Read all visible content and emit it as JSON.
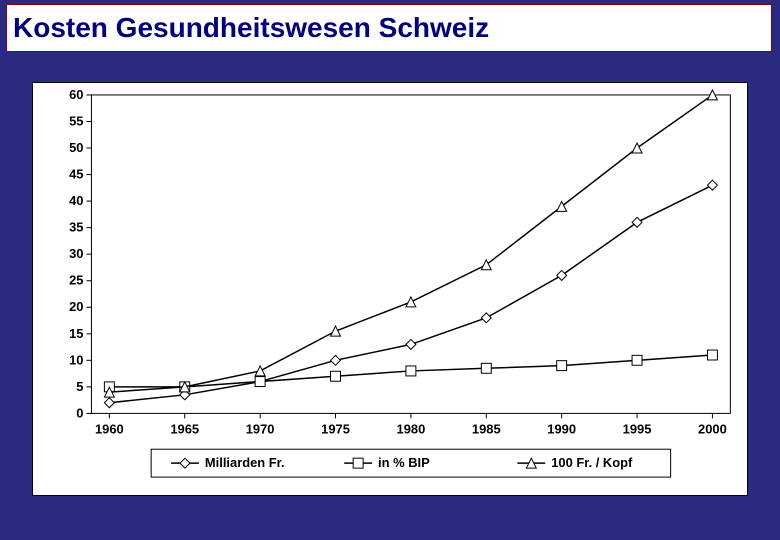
{
  "title": "Kosten Gesundheitswesen Schweiz",
  "chart": {
    "type": "line",
    "background_color": "#ffffff",
    "axis_color": "#000000",
    "tick_color": "#000000",
    "text_color": "#000000",
    "line_color": "#000000",
    "line_width": 1.5,
    "font_family": "Arial",
    "tick_fontsize": 13,
    "x": {
      "ticks": [
        1960,
        1965,
        1970,
        1975,
        1980,
        1985,
        1990,
        1995,
        2000
      ],
      "lim": [
        1960,
        2000
      ]
    },
    "y": {
      "ticks": [
        0,
        5,
        10,
        15,
        20,
        25,
        30,
        35,
        40,
        45,
        50,
        55,
        60
      ],
      "lim": [
        0,
        60
      ]
    },
    "series": [
      {
        "name": "Milliarden Fr.",
        "marker": "diamond",
        "values": {
          "1960": 2,
          "1965": 3.5,
          "1970": 6,
          "1975": 10,
          "1980": 13,
          "1985": 18,
          "1990": 26,
          "1995": 36,
          "2000": 43
        }
      },
      {
        "name": "in % BIP",
        "marker": "square",
        "values": {
          "1960": 5,
          "1965": 5,
          "1970": 6,
          "1975": 7,
          "1980": 8,
          "1985": 8.5,
          "1990": 9,
          "1995": 10,
          "2000": 11
        }
      },
      {
        "name": "100 Fr. / Kopf",
        "marker": "triangle",
        "values": {
          "1960": 4,
          "1965": 5,
          "1970": 8,
          "1975": 15.5,
          "1980": 21,
          "1985": 28,
          "1990": 39,
          "1995": 50,
          "2000": 60
        }
      }
    ],
    "legend": {
      "position": "bottom",
      "box_border": "#000000"
    }
  }
}
